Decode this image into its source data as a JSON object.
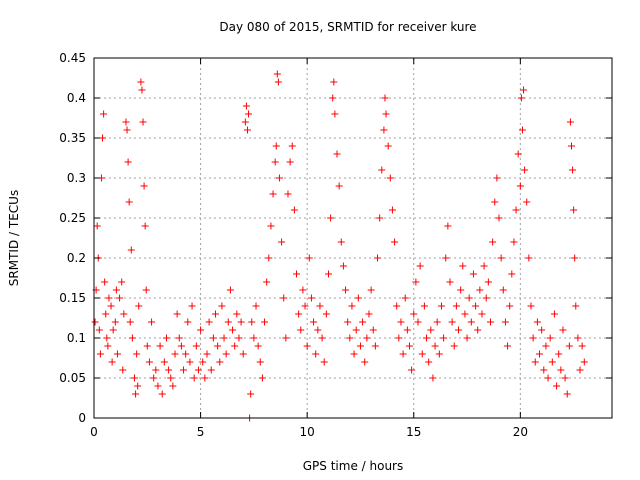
{
  "chart_data": {
    "type": "scatter",
    "title": "Day 080 of 2015, SRMTID for receiver kure",
    "xlabel": "GPS time / hours",
    "ylabel": "SRMTID / TECUs",
    "xlim": [
      0,
      24.3
    ],
    "ylim": [
      0,
      0.45
    ],
    "xticks": [
      0,
      5,
      10,
      15,
      20
    ],
    "xtick_labels": [
      "0",
      "5",
      "10",
      "15",
      "20"
    ],
    "yticks": [
      0,
      0.05,
      0.1,
      0.15,
      0.2,
      0.25,
      0.3,
      0.35,
      0.4,
      0.45
    ],
    "ytick_labels": [
      "0",
      "0.05",
      "0.1",
      "0.15",
      "0.2",
      "0.25",
      "0.3",
      "0.35",
      "0.4",
      "0.45"
    ],
    "grid": true,
    "marker": "+",
    "series": [
      {
        "name": "SRMTID",
        "color": "#ff0000",
        "points": [
          [
            0.05,
            0.12
          ],
          [
            0.1,
            0.16
          ],
          [
            0.15,
            0.24
          ],
          [
            0.2,
            0.2
          ],
          [
            0.25,
            0.11
          ],
          [
            0.3,
            0.08
          ],
          [
            0.35,
            0.3
          ],
          [
            0.4,
            0.35
          ],
          [
            0.45,
            0.38
          ],
          [
            0.5,
            0.17
          ],
          [
            0.55,
            0.13
          ],
          [
            0.6,
            0.1
          ],
          [
            0.65,
            0.09
          ],
          [
            0.7,
            0.15
          ],
          [
            0.8,
            0.14
          ],
          [
            0.85,
            0.07
          ],
          [
            0.9,
            0.11
          ],
          [
            1.0,
            0.12
          ],
          [
            1.05,
            0.16
          ],
          [
            1.1,
            0.08
          ],
          [
            1.2,
            0.15
          ],
          [
            1.3,
            0.17
          ],
          [
            1.35,
            0.06
          ],
          [
            1.4,
            0.13
          ],
          [
            1.5,
            0.37
          ],
          [
            1.55,
            0.36
          ],
          [
            1.6,
            0.32
          ],
          [
            1.65,
            0.27
          ],
          [
            1.7,
            0.12
          ],
          [
            1.75,
            0.21
          ],
          [
            1.8,
            0.1
          ],
          [
            1.9,
            0.05
          ],
          [
            1.95,
            0.03
          ],
          [
            2.0,
            0.08
          ],
          [
            2.05,
            0.04
          ],
          [
            2.1,
            0.14
          ],
          [
            2.2,
            0.42
          ],
          [
            2.25,
            0.41
          ],
          [
            2.3,
            0.37
          ],
          [
            2.35,
            0.29
          ],
          [
            2.4,
            0.24
          ],
          [
            2.45,
            0.16
          ],
          [
            2.5,
            0.09
          ],
          [
            2.6,
            0.07
          ],
          [
            2.7,
            0.12
          ],
          [
            2.8,
            0.05
          ],
          [
            2.9,
            0.06
          ],
          [
            3.0,
            0.04
          ],
          [
            3.1,
            0.09
          ],
          [
            3.2,
            0.03
          ],
          [
            3.3,
            0.07
          ],
          [
            3.4,
            0.1
          ],
          [
            3.5,
            0.06
          ],
          [
            3.6,
            0.05
          ],
          [
            3.7,
            0.04
          ],
          [
            3.8,
            0.08
          ],
          [
            3.9,
            0.13
          ],
          [
            4.0,
            0.1
          ],
          [
            4.1,
            0.09
          ],
          [
            4.2,
            0.06
          ],
          [
            4.3,
            0.08
          ],
          [
            4.4,
            0.12
          ],
          [
            4.5,
            0.07
          ],
          [
            4.6,
            0.14
          ],
          [
            4.7,
            0.05
          ],
          [
            4.8,
            0.09
          ],
          [
            4.9,
            0.06
          ],
          [
            5.0,
            0.11
          ],
          [
            5.1,
            0.07
          ],
          [
            5.2,
            0.05
          ],
          [
            5.3,
            0.08
          ],
          [
            5.4,
            0.12
          ],
          [
            5.5,
            0.06
          ],
          [
            5.6,
            0.1
          ],
          [
            5.7,
            0.13
          ],
          [
            5.8,
            0.09
          ],
          [
            5.9,
            0.07
          ],
          [
            6.0,
            0.14
          ],
          [
            6.1,
            0.1
          ],
          [
            6.2,
            0.08
          ],
          [
            6.3,
            0.12
          ],
          [
            6.4,
            0.16
          ],
          [
            6.5,
            0.11
          ],
          [
            6.6,
            0.09
          ],
          [
            6.7,
            0.13
          ],
          [
            6.8,
            0.1
          ],
          [
            6.9,
            0.12
          ],
          [
            7.0,
            0.08
          ],
          [
            7.1,
            0.37
          ],
          [
            7.15,
            0.39
          ],
          [
            7.2,
            0.36
          ],
          [
            7.25,
            0.38
          ],
          [
            7.3,
            0.0
          ],
          [
            7.35,
            0.03
          ],
          [
            7.4,
            0.12
          ],
          [
            7.5,
            0.1
          ],
          [
            7.6,
            0.14
          ],
          [
            7.7,
            0.09
          ],
          [
            7.8,
            0.07
          ],
          [
            7.9,
            0.05
          ],
          [
            8.0,
            0.12
          ],
          [
            8.1,
            0.17
          ],
          [
            8.2,
            0.2
          ],
          [
            8.3,
            0.24
          ],
          [
            8.4,
            0.28
          ],
          [
            8.5,
            0.32
          ],
          [
            8.55,
            0.34
          ],
          [
            8.6,
            0.43
          ],
          [
            8.65,
            0.42
          ],
          [
            8.7,
            0.3
          ],
          [
            8.8,
            0.22
          ],
          [
            8.9,
            0.15
          ],
          [
            9.0,
            0.1
          ],
          [
            9.1,
            0.28
          ],
          [
            9.2,
            0.32
          ],
          [
            9.3,
            0.34
          ],
          [
            9.4,
            0.26
          ],
          [
            9.5,
            0.18
          ],
          [
            9.6,
            0.13
          ],
          [
            9.7,
            0.11
          ],
          [
            9.8,
            0.16
          ],
          [
            9.9,
            0.14
          ],
          [
            10.0,
            0.09
          ],
          [
            10.1,
            0.2
          ],
          [
            10.2,
            0.15
          ],
          [
            10.3,
            0.12
          ],
          [
            10.4,
            0.08
          ],
          [
            10.5,
            0.11
          ],
          [
            10.6,
            0.14
          ],
          [
            10.7,
            0.1
          ],
          [
            10.8,
            0.07
          ],
          [
            10.9,
            0.13
          ],
          [
            11.0,
            0.18
          ],
          [
            11.1,
            0.25
          ],
          [
            11.2,
            0.4
          ],
          [
            11.25,
            0.42
          ],
          [
            11.3,
            0.38
          ],
          [
            11.4,
            0.33
          ],
          [
            11.5,
            0.29
          ],
          [
            11.6,
            0.22
          ],
          [
            11.7,
            0.19
          ],
          [
            11.8,
            0.16
          ],
          [
            11.9,
            0.12
          ],
          [
            12.0,
            0.1
          ],
          [
            12.1,
            0.14
          ],
          [
            12.2,
            0.08
          ],
          [
            12.3,
            0.11
          ],
          [
            12.4,
            0.15
          ],
          [
            12.5,
            0.09
          ],
          [
            12.6,
            0.12
          ],
          [
            12.7,
            0.07
          ],
          [
            12.8,
            0.1
          ],
          [
            12.9,
            0.13
          ],
          [
            13.0,
            0.16
          ],
          [
            13.1,
            0.11
          ],
          [
            13.2,
            0.09
          ],
          [
            13.3,
            0.2
          ],
          [
            13.4,
            0.25
          ],
          [
            13.5,
            0.31
          ],
          [
            13.6,
            0.36
          ],
          [
            13.65,
            0.4
          ],
          [
            13.7,
            0.38
          ],
          [
            13.8,
            0.34
          ],
          [
            13.9,
            0.3
          ],
          [
            14.0,
            0.26
          ],
          [
            14.1,
            0.22
          ],
          [
            14.2,
            0.14
          ],
          [
            14.3,
            0.1
          ],
          [
            14.4,
            0.12
          ],
          [
            14.5,
            0.08
          ],
          [
            14.6,
            0.15
          ],
          [
            14.7,
            0.11
          ],
          [
            14.8,
            0.09
          ],
          [
            14.9,
            0.06
          ],
          [
            15.0,
            0.13
          ],
          [
            15.1,
            0.17
          ],
          [
            15.2,
            0.12
          ],
          [
            15.3,
            0.19
          ],
          [
            15.4,
            0.08
          ],
          [
            15.5,
            0.14
          ],
          [
            15.6,
            0.1
          ],
          [
            15.7,
            0.07
          ],
          [
            15.8,
            0.11
          ],
          [
            15.9,
            0.05
          ],
          [
            16.0,
            0.09
          ],
          [
            16.1,
            0.12
          ],
          [
            16.2,
            0.08
          ],
          [
            16.3,
            0.14
          ],
          [
            16.4,
            0.1
          ],
          [
            16.5,
            0.2
          ],
          [
            16.6,
            0.24
          ],
          [
            16.7,
            0.17
          ],
          [
            16.8,
            0.12
          ],
          [
            16.9,
            0.09
          ],
          [
            17.0,
            0.14
          ],
          [
            17.1,
            0.11
          ],
          [
            17.2,
            0.16
          ],
          [
            17.3,
            0.19
          ],
          [
            17.4,
            0.13
          ],
          [
            17.5,
            0.1
          ],
          [
            17.6,
            0.15
          ],
          [
            17.7,
            0.12
          ],
          [
            17.8,
            0.18
          ],
          [
            17.9,
            0.14
          ],
          [
            18.0,
            0.11
          ],
          [
            18.1,
            0.16
          ],
          [
            18.2,
            0.13
          ],
          [
            18.3,
            0.19
          ],
          [
            18.4,
            0.15
          ],
          [
            18.5,
            0.17
          ],
          [
            18.6,
            0.12
          ],
          [
            18.7,
            0.22
          ],
          [
            18.8,
            0.27
          ],
          [
            18.9,
            0.3
          ],
          [
            19.0,
            0.25
          ],
          [
            19.1,
            0.2
          ],
          [
            19.2,
            0.16
          ],
          [
            19.3,
            0.12
          ],
          [
            19.4,
            0.09
          ],
          [
            19.5,
            0.14
          ],
          [
            19.6,
            0.18
          ],
          [
            19.7,
            0.22
          ],
          [
            19.8,
            0.26
          ],
          [
            19.9,
            0.33
          ],
          [
            20.0,
            0.29
          ],
          [
            20.05,
            0.4
          ],
          [
            20.1,
            0.36
          ],
          [
            20.15,
            0.41
          ],
          [
            20.2,
            0.31
          ],
          [
            20.3,
            0.27
          ],
          [
            20.4,
            0.2
          ],
          [
            20.5,
            0.14
          ],
          [
            20.6,
            0.1
          ],
          [
            20.7,
            0.07
          ],
          [
            20.8,
            0.12
          ],
          [
            20.9,
            0.08
          ],
          [
            21.0,
            0.11
          ],
          [
            21.1,
            0.06
          ],
          [
            21.2,
            0.09
          ],
          [
            21.3,
            0.05
          ],
          [
            21.4,
            0.1
          ],
          [
            21.5,
            0.07
          ],
          [
            21.6,
            0.13
          ],
          [
            21.7,
            0.04
          ],
          [
            21.8,
            0.08
          ],
          [
            21.9,
            0.06
          ],
          [
            22.0,
            0.11
          ],
          [
            22.1,
            0.05
          ],
          [
            22.2,
            0.03
          ],
          [
            22.3,
            0.09
          ],
          [
            22.35,
            0.37
          ],
          [
            22.4,
            0.34
          ],
          [
            22.45,
            0.31
          ],
          [
            22.5,
            0.26
          ],
          [
            22.55,
            0.2
          ],
          [
            22.6,
            0.14
          ],
          [
            22.7,
            0.1
          ],
          [
            22.8,
            0.06
          ],
          [
            22.9,
            0.09
          ],
          [
            23.0,
            0.07
          ]
        ]
      }
    ]
  }
}
